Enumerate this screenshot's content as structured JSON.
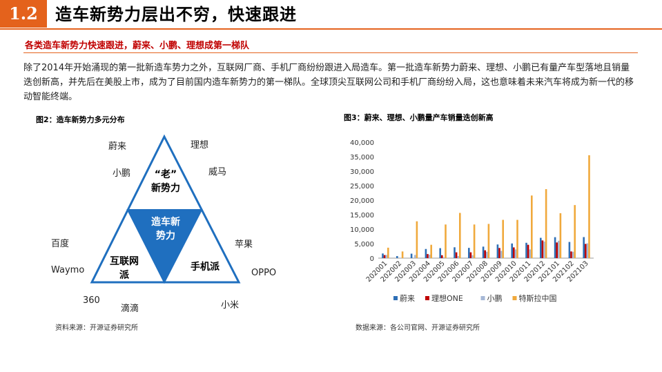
{
  "header": {
    "section_number": "1.2",
    "title": "造车新势力层出不穷，快速跟进"
  },
  "subheading": "各类造车新势力快速跟进，蔚来、小鹏、理想成第一梯队",
  "paragraph": "除了2014年开始涌现的第一批新造车势力之外，互联网厂商、手机厂商纷纷跟进入局造车。第一批造车新势力蔚来、理想、小鹏已有量产车型落地且销量迭创新高，并先后在美股上市，成为了目前国内造车新势力的第一梯队。全球顶尖互联网公司和手机厂商纷纷入局，这也意味着未来汽车将成为新一代的移动智能终端。",
  "figure2": {
    "title": "图2：造车新势力多元分布",
    "center": "造车新\n势力",
    "top": "“老”\n新势力",
    "left": "互联网\n派",
    "right": "手机派",
    "labels": {
      "nio": "蔚来",
      "lixiang": "理想",
      "xpeng": "小鹏",
      "wm": "威马",
      "baidu": "百度",
      "apple": "苹果",
      "waymo": "Waymo",
      "oppo": "OPPO",
      "n360": "360",
      "didi": "滴滴",
      "xiaomi": "小米"
    },
    "source": "资料来源：开源证券研究所"
  },
  "figure3": {
    "title": "图3：蔚来、理想、小鹏量产车销量迭创新高",
    "source": "数据来源：各公司官网、开源证券研究所"
  },
  "colors": {
    "nio": "#2e6fb6",
    "lixiang": "#c00000",
    "xpeng": "#a6b8d6",
    "tesla": "#f0a93c",
    "accent": "#e4621c",
    "triangle": "#1f6fbf"
  },
  "chart_data": {
    "type": "bar",
    "categories": [
      "202001",
      "202002",
      "202003",
      "202004",
      "202005",
      "202006",
      "202007",
      "202008",
      "202009",
      "202010",
      "202011",
      "202012",
      "202101",
      "202102",
      "202103"
    ],
    "series": [
      {
        "name": "蔚来",
        "values": [
          1598,
          707,
          1533,
          3155,
          3436,
          3740,
          3533,
          3965,
          4708,
          5055,
          5291,
          7007,
          7225,
          5578,
          7257
        ]
      },
      {
        "name": "理想ONE",
        "values": [
          1050,
          0,
          0,
          1400,
          1000,
          2000,
          2000,
          2700,
          3500,
          3700,
          4600,
          6100,
          5400,
          2300,
          4900
        ]
      },
      {
        "name": "小鹏",
        "values": [
          1100,
          150,
          1100,
          1200,
          300,
          700,
          1000,
          2200,
          2500,
          3000,
          3000,
          5700,
          6000,
          2200,
          5100
        ]
      },
      {
        "name": "特斯拉中国",
        "values": [
          3600,
          2300,
          12700,
          4600,
          11600,
          15600,
          11600,
          11800,
          13200,
          13200,
          21600,
          23800,
          15500,
          18300,
          35500
        ]
      }
    ],
    "ylim": [
      0,
      40000
    ],
    "yticks": [
      "0",
      "5,000",
      "10,000",
      "15,000",
      "20,000",
      "25,000",
      "30,000",
      "35,000",
      "40,000"
    ],
    "legend_position": "bottom"
  }
}
